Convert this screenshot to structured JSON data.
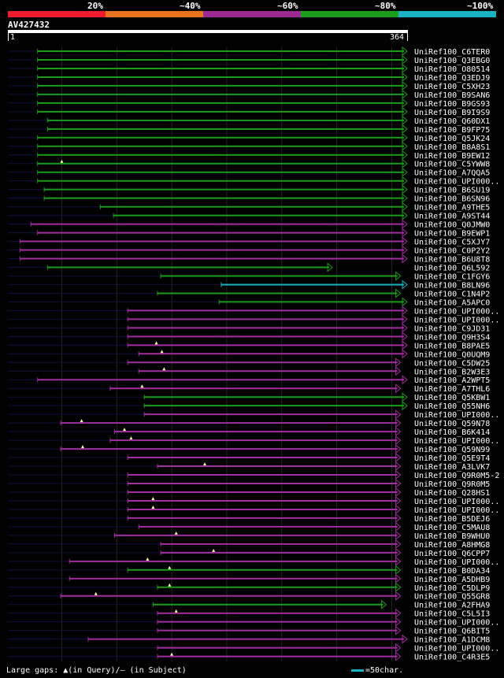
{
  "legend": [
    {
      "label": "20%",
      "color": "#ee1c2e"
    },
    {
      "label": "~40%",
      "color": "#e87420"
    },
    {
      "label": "~60%",
      "color": "#9a2a8f"
    },
    {
      "label": "~80%",
      "color": "#1c9c1c"
    },
    {
      "label": "~100%",
      "color": "#19b2c0"
    }
  ],
  "query": {
    "id": "AV427432",
    "start": "1",
    "end": "364",
    "length": 364
  },
  "footer": {
    "text": "Large gaps: ▲(in Query)/– (in Subject)",
    "scale": "=50char."
  },
  "colors": {
    "green": "#1c9c1c",
    "purple": "#a22ea0",
    "cyan": "#19b2c0",
    "dim": "#101040"
  },
  "hits": [
    {
      "label": "UniRef100_C6TER0",
      "color": "green",
      "qs": 28,
      "qe": 364,
      "arrow": true
    },
    {
      "label": "UniRef100_Q3EBG0",
      "color": "green",
      "qs": 28,
      "qe": 364,
      "arrow": true
    },
    {
      "label": "UniRef100_O80514",
      "color": "green",
      "qs": 28,
      "qe": 364,
      "arrow": true
    },
    {
      "label": "UniRef100_Q3EDJ9",
      "color": "green",
      "qs": 28,
      "qe": 364,
      "arrow": true
    },
    {
      "label": "UniRef100_C5XH23",
      "color": "green",
      "qs": 28,
      "qe": 364,
      "arrow": true
    },
    {
      "label": "UniRef100_B9SAN6",
      "color": "green",
      "qs": 28,
      "qe": 364,
      "arrow": true
    },
    {
      "label": "UniRef100_B9GS93",
      "color": "green",
      "qs": 28,
      "qe": 364,
      "arrow": true
    },
    {
      "label": "UniRef100_B9I9S9",
      "color": "green",
      "qs": 28,
      "qe": 364,
      "arrow": true
    },
    {
      "label": "UniRef100_Q60DX1",
      "color": "green",
      "qs": 37,
      "qe": 364,
      "arrow": true
    },
    {
      "label": "UniRef100_B9FP75",
      "color": "green",
      "qs": 37,
      "qe": 364,
      "arrow": true
    },
    {
      "label": "UniRef100_Q5JK24",
      "color": "green",
      "qs": 28,
      "qe": 364,
      "arrow": true
    },
    {
      "label": "UniRef100_B8A8S1",
      "color": "green",
      "qs": 28,
      "qe": 364,
      "arrow": true
    },
    {
      "label": "UniRef100_B9EW12",
      "color": "green",
      "qs": 28,
      "qe": 364,
      "arrow": true
    },
    {
      "label": "UniRef100_C5YWW8",
      "color": "green",
      "qs": 28,
      "qe": 364,
      "arrow": true,
      "tri": 50
    },
    {
      "label": "UniRef100_A7QQA5",
      "color": "green",
      "qs": 28,
      "qe": 364,
      "arrow": true
    },
    {
      "label": "UniRef100_UPI000..",
      "color": "green",
      "qs": 28,
      "qe": 364,
      "arrow": true
    },
    {
      "label": "UniRef100_B6SU19",
      "color": "green",
      "qs": 34,
      "qe": 364,
      "arrow": true
    },
    {
      "label": "UniRef100_B6SN96",
      "color": "green",
      "qs": 34,
      "qe": 364,
      "arrow": true
    },
    {
      "label": "UniRef100_A9THE5",
      "color": "green",
      "qs": 85,
      "qe": 364,
      "arrow": true
    },
    {
      "label": "UniRef100_A9ST44",
      "color": "green",
      "qs": 97,
      "qe": 364,
      "arrow": true
    },
    {
      "label": "UniRef100_Q0JMW0",
      "color": "purple",
      "qs": 22,
      "qe": 364,
      "arrow": true
    },
    {
      "label": "UniRef100_B9EWP1",
      "color": "purple",
      "qs": 28,
      "qe": 364,
      "arrow": true
    },
    {
      "label": "UniRef100_C5XJY7",
      "color": "purple",
      "qs": 12,
      "qe": 364,
      "arrow": true
    },
    {
      "label": "UniRef100_C0P2Y2",
      "color": "purple",
      "qs": 12,
      "qe": 364,
      "arrow": true
    },
    {
      "label": "UniRef100_B6U8T8",
      "color": "purple",
      "qs": 12,
      "qe": 364,
      "arrow": true
    },
    {
      "label": "UniRef100_Q6L592",
      "color": "green",
      "qs": 37,
      "qe": 296,
      "arrow": true
    },
    {
      "label": "UniRef100_C1FGY6",
      "color": "green",
      "qs": 140,
      "qe": 358,
      "arrow": true
    },
    {
      "label": "UniRef100_B8LN96",
      "color": "cyan",
      "qs": 195,
      "qe": 364,
      "arrow": true
    },
    {
      "label": "UniRef100_C1N4P2",
      "color": "green",
      "qs": 137,
      "qe": 358,
      "arrow": true
    },
    {
      "label": "UniRef100_A5APC0",
      "color": "green",
      "qs": 193,
      "qe": 364,
      "arrow": true
    },
    {
      "label": "UniRef100_UPI000..",
      "color": "purple",
      "qs": 110,
      "qe": 364,
      "arrow": true
    },
    {
      "label": "UniRef100_UPI000..",
      "color": "purple",
      "qs": 110,
      "qe": 364,
      "arrow": true
    },
    {
      "label": "UniRef100_C9JD31",
      "color": "purple",
      "qs": 110,
      "qe": 364,
      "arrow": true
    },
    {
      "label": "UniRef100_Q9H3S4",
      "color": "purple",
      "qs": 110,
      "qe": 364,
      "arrow": true
    },
    {
      "label": "UniRef100_B8PAE5",
      "color": "purple",
      "qs": 110,
      "qe": 364,
      "arrow": true,
      "tri": 136
    },
    {
      "label": "UniRef100_Q0UQM9",
      "color": "purple",
      "qs": 120,
      "qe": 364,
      "arrow": true,
      "tri": 141
    },
    {
      "label": "UniRef100_C5DW25",
      "color": "purple",
      "qs": 110,
      "qe": 358,
      "arrow": true
    },
    {
      "label": "UniRef100_B2W3E3",
      "color": "purple",
      "qs": 120,
      "qe": 358,
      "arrow": true,
      "tri": 143
    },
    {
      "label": "UniRef100_A2WPT5",
      "color": "purple",
      "qs": 28,
      "qe": 364,
      "arrow": true
    },
    {
      "label": "UniRef100_A7THL6",
      "color": "purple",
      "qs": 94,
      "qe": 358,
      "arrow": true,
      "tri": 123
    },
    {
      "label": "UniRef100_Q5KBW1",
      "color": "green",
      "qs": 125,
      "qe": 364,
      "arrow": true
    },
    {
      "label": "UniRef100_Q55NH6",
      "color": "green",
      "qs": 125,
      "qe": 364,
      "arrow": true
    },
    {
      "label": "UniRef100_UPI000..",
      "color": "purple",
      "qs": 125,
      "qe": 358,
      "arrow": true
    },
    {
      "label": "UniRef100_Q59N78",
      "color": "purple",
      "qs": 49,
      "qe": 358,
      "arrow": true,
      "tri": 68
    },
    {
      "label": "UniRef100_B6K414",
      "color": "purple",
      "qs": 98,
      "qe": 358,
      "arrow": true,
      "tri": 107
    },
    {
      "label": "UniRef100_UPI000..",
      "color": "purple",
      "qs": 94,
      "qe": 358,
      "arrow": true,
      "tri": 113
    },
    {
      "label": "UniRef100_Q59N99",
      "color": "purple",
      "qs": 49,
      "qe": 358,
      "arrow": true,
      "tri": 69
    },
    {
      "label": "UniRef100_Q5E9T4",
      "color": "purple",
      "qs": 110,
      "qe": 358,
      "arrow": true
    },
    {
      "label": "UniRef100_A3LVK7",
      "color": "purple",
      "qs": 137,
      "qe": 358,
      "arrow": true,
      "tri": 180
    },
    {
      "label": "UniRef100_Q9R0M5-2",
      "color": "purple",
      "qs": 110,
      "qe": 358,
      "arrow": true
    },
    {
      "label": "UniRef100_Q9R0M5",
      "color": "purple",
      "qs": 110,
      "qe": 358,
      "arrow": true
    },
    {
      "label": "UniRef100_Q28HS1",
      "color": "purple",
      "qs": 110,
      "qe": 358,
      "arrow": true
    },
    {
      "label": "UniRef100_UPI000..",
      "color": "purple",
      "qs": 110,
      "qe": 358,
      "arrow": true,
      "tri": 133
    },
    {
      "label": "UniRef100_UPI000..",
      "color": "purple",
      "qs": 110,
      "qe": 358,
      "arrow": true,
      "tri": 133
    },
    {
      "label": "UniRef100_B5DEJ6",
      "color": "purple",
      "qs": 110,
      "qe": 358,
      "arrow": true
    },
    {
      "label": "UniRef100_C5MAU8",
      "color": "purple",
      "qs": 120,
      "qe": 358,
      "arrow": true
    },
    {
      "label": "UniRef100_B9WHU0",
      "color": "purple",
      "qs": 98,
      "qe": 358,
      "arrow": true,
      "tri": 154
    },
    {
      "label": "UniRef100_A8HMG8",
      "color": "purple",
      "qs": 140,
      "qe": 358,
      "arrow": true
    },
    {
      "label": "UniRef100_Q6CPP7",
      "color": "purple",
      "qs": 140,
      "qe": 358,
      "arrow": true,
      "tri": 188
    },
    {
      "label": "UniRef100_UPI000..",
      "color": "purple",
      "qs": 57,
      "qe": 358,
      "arrow": true,
      "tri": 128
    },
    {
      "label": "UniRef100_B0DA34",
      "color": "green",
      "qs": 110,
      "qe": 358,
      "arrow": true,
      "tri": 148
    },
    {
      "label": "UniRef100_A5DHB9",
      "color": "purple",
      "qs": 57,
      "qe": 358,
      "arrow": true
    },
    {
      "label": "UniRef100_C5DLP9",
      "color": "green",
      "qs": 137,
      "qe": 358,
      "arrow": true,
      "tri": 148
    },
    {
      "label": "UniRef100_Q55GR8",
      "color": "purple",
      "qs": 49,
      "qe": 358,
      "arrow": true,
      "tri": 81
    },
    {
      "label": "UniRef100_A2FHA9",
      "color": "green",
      "qs": 133,
      "qe": 345,
      "arrow": true
    },
    {
      "label": "UniRef100_C5L5I3",
      "color": "purple",
      "qs": 137,
      "qe": 358,
      "arrow": true,
      "tri": 154
    },
    {
      "label": "UniRef100_UPI000..",
      "color": "purple",
      "qs": 137,
      "qe": 358,
      "arrow": true
    },
    {
      "label": "UniRef100_Q6BIT5",
      "color": "purple",
      "qs": 137,
      "qe": 358,
      "arrow": true
    },
    {
      "label": "UniRef100_A1DCM8",
      "color": "purple",
      "qs": 74,
      "qe": 364,
      "arrow": true
    },
    {
      "label": "UniRef100_UPI000..",
      "color": "purple",
      "qs": 137,
      "qe": 358,
      "arrow": true
    },
    {
      "label": "UniRef100_C4R3E5",
      "color": "purple",
      "qs": 137,
      "qe": 358,
      "arrow": true,
      "tri": 150
    }
  ]
}
